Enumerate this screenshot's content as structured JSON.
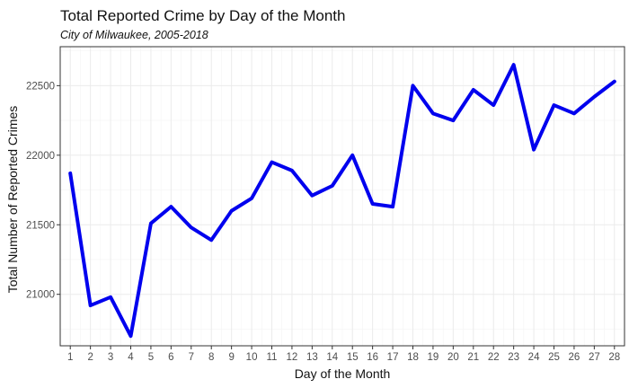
{
  "chart_data": {
    "type": "line",
    "title": "Total Reported Crime by Day of the Month",
    "subtitle": "City of Milwaukee, 2005-2018",
    "xlabel": "Day of the Month",
    "ylabel": "Total Number of Reported Crimes",
    "x": [
      1,
      2,
      3,
      4,
      5,
      6,
      7,
      8,
      9,
      10,
      11,
      12,
      13,
      14,
      15,
      16,
      17,
      18,
      19,
      20,
      21,
      22,
      23,
      24,
      25,
      26,
      27,
      28
    ],
    "series": [
      {
        "values": [
          21870,
          20920,
          20980,
          20700,
          21510,
          21630,
          21480,
          21390,
          21600,
          21690,
          21950,
          21890,
          21710,
          21780,
          22000,
          21650,
          21630,
          22500,
          22300,
          22250,
          22470,
          22360,
          22650,
          22040,
          22360,
          22300,
          22420,
          22530
        ],
        "color": "#0000ee"
      }
    ],
    "xlim": [
      0.5,
      28.5
    ],
    "ylim": [
      20630,
      22780
    ],
    "yticks": [
      21000,
      21500,
      22000,
      22500
    ],
    "grid": true,
    "legend": "none"
  }
}
